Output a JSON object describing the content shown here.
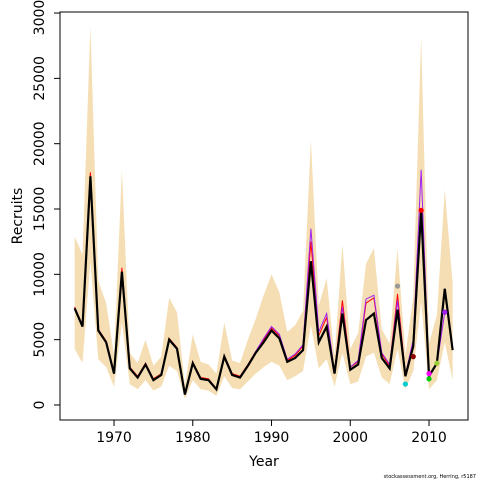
{
  "chart_data": {
    "type": "line",
    "xlabel": "Year",
    "ylabel": "Recruits",
    "footer": "stockassessment.org, Herring, r5187",
    "xlim": [
      1963.14,
      2014.95
    ],
    "ylim": [
      -1150,
      30080
    ],
    "xticks": [
      1970,
      1980,
      1990,
      2000,
      2010
    ],
    "yticks": [
      0,
      5000,
      10000,
      15000,
      20000,
      25000,
      30000
    ],
    "x": [
      1965,
      1966,
      1967,
      1968,
      1969,
      1970,
      1971,
      1972,
      1973,
      1974,
      1975,
      1976,
      1977,
      1978,
      1979,
      1980,
      1981,
      1982,
      1983,
      1984,
      1985,
      1986,
      1987,
      1988,
      1989,
      1990,
      1991,
      1992,
      1993,
      1994,
      1995,
      1996,
      1997,
      1998,
      1999,
      2000,
      2001,
      2002,
      2003,
      2004,
      2005,
      2006,
      2007,
      2008,
      2009,
      2010,
      2011,
      2012,
      2013
    ],
    "band": {
      "color": "#f5deb3",
      "upper": [
        12900,
        11500,
        29000,
        9500,
        7800,
        3800,
        18000,
        4000,
        3200,
        5000,
        3000,
        3700,
        8200,
        7100,
        1500,
        5400,
        3300,
        3100,
        2400,
        6300,
        3400,
        3200,
        5000,
        6600,
        8400,
        10000,
        8600,
        5600,
        6100,
        7200,
        20300,
        7600,
        9700,
        3700,
        12300,
        4300,
        5500,
        10800,
        12000,
        5800,
        4700,
        12000,
        3800,
        8300,
        28200,
        4700,
        6900,
        16500,
        9300
      ],
      "lower": [
        4300,
        3200,
        11000,
        3500,
        2900,
        1400,
        6300,
        1600,
        1200,
        1900,
        1100,
        1400,
        3000,
        2600,
        500,
        1900,
        1200,
        1100,
        700,
        2200,
        1300,
        1200,
        1800,
        2400,
        2900,
        3300,
        3000,
        1900,
        2200,
        2600,
        6100,
        2800,
        3500,
        1400,
        4000,
        1600,
        1800,
        3700,
        4000,
        2100,
        1600,
        4300,
        1200,
        2600,
        7900,
        1200,
        1900,
        4800,
        1900
      ]
    },
    "series": [
      {
        "color": "#ff0000",
        "width": 1,
        "values": [
          7500,
          6100,
          17800,
          5800,
          4900,
          2500,
          10500,
          2900,
          2200,
          3200,
          2000,
          2400,
          5100,
          4400,
          850,
          3300,
          2100,
          2000,
          1250,
          3800,
          2400,
          2200,
          3100,
          4100,
          5000,
          5900,
          5300,
          3400,
          3800,
          4500,
          12500,
          5300,
          6700,
          2500,
          8000,
          2900,
          3300,
          7800,
          8200,
          3900,
          3000,
          8500,
          2300,
          4800,
          15000,
          null,
          null,
          null,
          null
        ]
      },
      {
        "color": "#a020f0",
        "width": 1,
        "values": [
          7400,
          6000,
          17300,
          5700,
          4800,
          2400,
          10100,
          2800,
          2100,
          3100,
          1900,
          2300,
          5000,
          4300,
          800,
          3200,
          2000,
          1900,
          1200,
          3700,
          2300,
          2100,
          3000,
          4100,
          5100,
          6000,
          5400,
          3500,
          3900,
          4600,
          13500,
          5600,
          7000,
          2500,
          7500,
          2900,
          3400,
          8100,
          8400,
          4000,
          3100,
          8000,
          2300,
          5000,
          18000,
          2400,
          3100,
          7100,
          null
        ]
      },
      {
        "color": "#000000",
        "width": 2.2,
        "values": [
          7400,
          6000,
          17500,
          5700,
          4800,
          2400,
          10200,
          2800,
          2100,
          3100,
          1900,
          2300,
          5000,
          4300,
          800,
          3200,
          2000,
          1900,
          1200,
          3700,
          2300,
          2100,
          3000,
          4000,
          4800,
          5700,
          5100,
          3300,
          3600,
          4200,
          11000,
          4800,
          6000,
          2400,
          7000,
          2700,
          3100,
          6500,
          7000,
          3600,
          2800,
          7300,
          2200,
          4500,
          14900,
          2200,
          3200,
          8900,
          4200
        ]
      }
    ],
    "points": {
      "x": [
        2006,
        2007,
        2008,
        2009,
        2010,
        2010,
        2011,
        2012
      ],
      "values": [
        9100,
        1600,
        3700,
        14900,
        2400,
        2000,
        3200,
        7100
      ],
      "colors": [
        "#999999",
        "#00cdcd",
        "#8b0000",
        "#ff0000",
        "#ff00ff",
        "#00cd00",
        "#9acd32",
        "#a020f0"
      ]
    }
  }
}
